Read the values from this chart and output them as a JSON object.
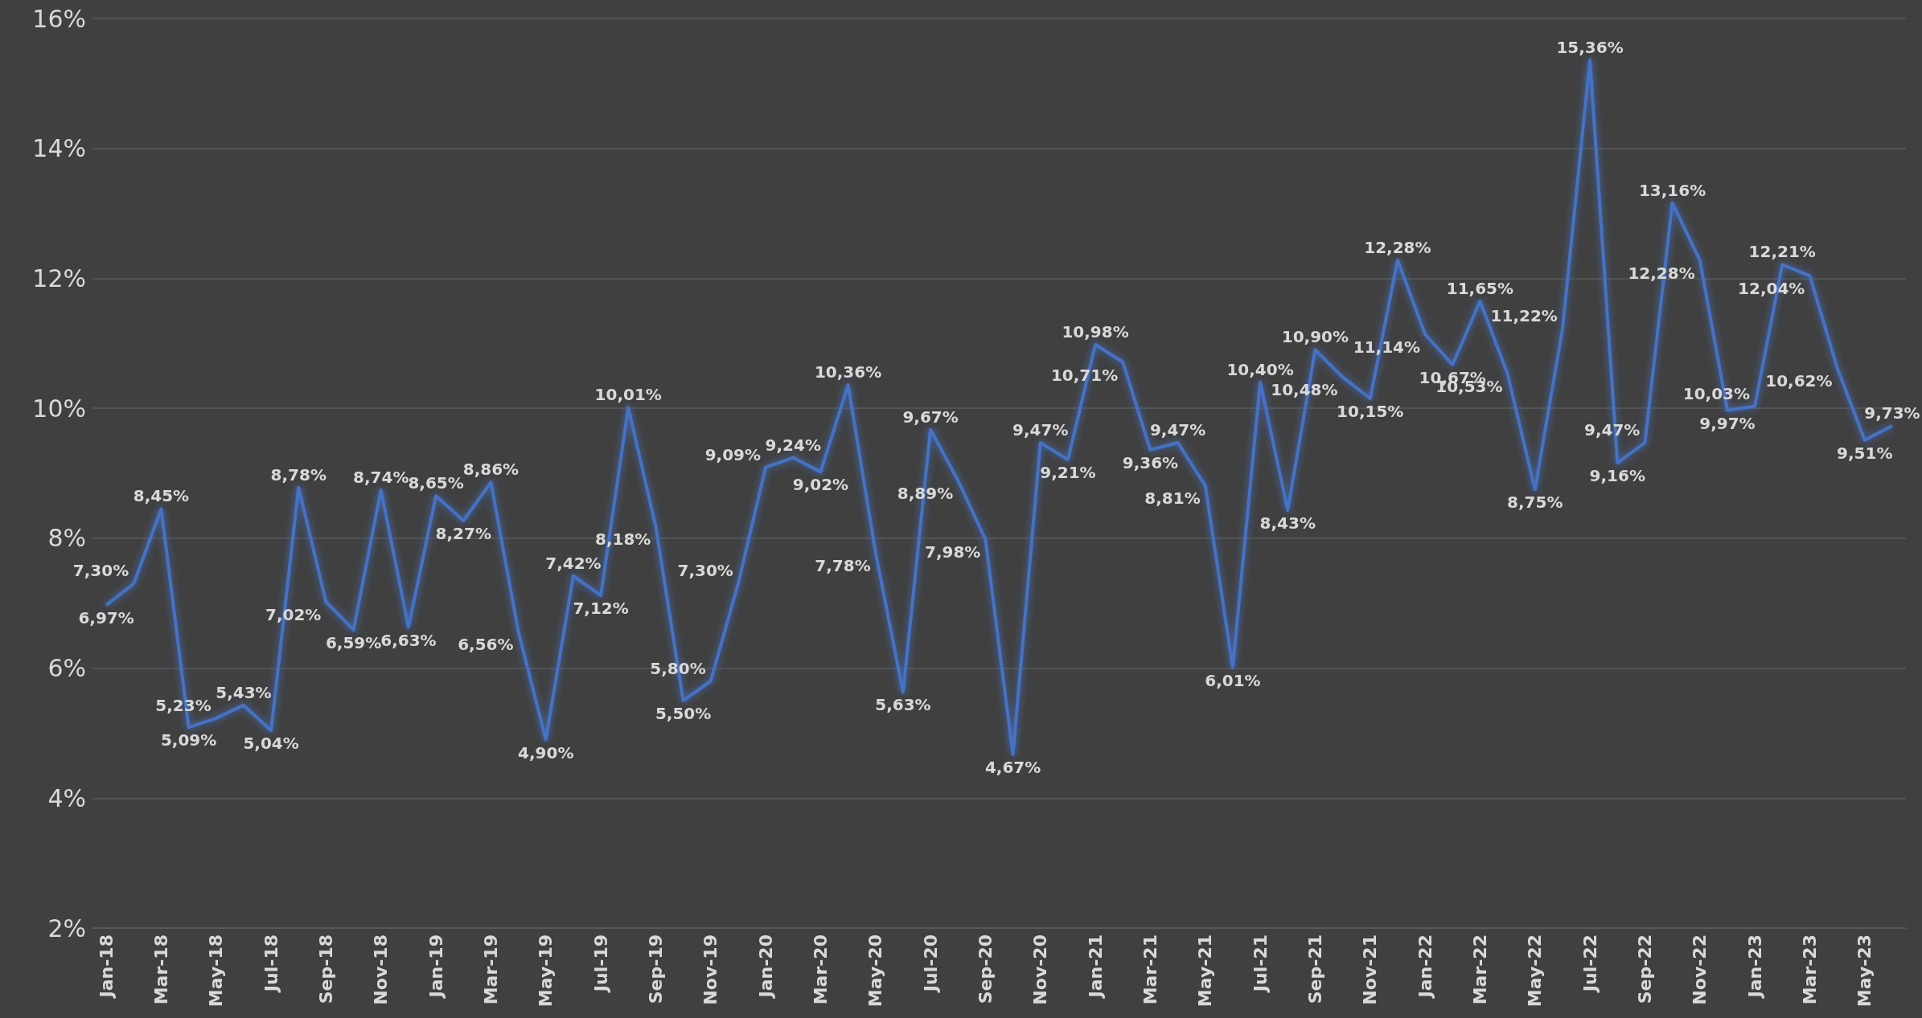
{
  "chart_data": {
    "type": "line",
    "categories": [
      "Jan-18",
      null,
      "Mar-18",
      null,
      "May-18",
      null,
      "Jul-18",
      null,
      "Sep-18",
      null,
      "Nov-18",
      null,
      "Jan-19",
      null,
      "Mar-19",
      null,
      "May-19",
      null,
      "Jul-19",
      null,
      "Sep-19",
      null,
      "Nov-19",
      null,
      "Jan-20",
      null,
      "Mar-20",
      null,
      "May-20",
      null,
      "Jul-20",
      null,
      "Sep-20",
      null,
      "Nov-20",
      null,
      "Jan-21",
      null,
      "Mar-21",
      null,
      "May-21",
      null,
      "Jul-21",
      null,
      "Sep-21",
      null,
      "Nov-21",
      null,
      "Jan-22",
      null,
      "Mar-22",
      null,
      "May-22",
      null,
      "Jul-22",
      null,
      "Sep-22",
      null,
      "Nov-22",
      null,
      "Jan-23",
      null,
      "Mar-23",
      null,
      "May-23",
      null
    ],
    "series": [
      {
        "color": "#4472c4",
        "values": [
          6.97,
          7.3,
          8.45,
          5.09,
          5.23,
          5.43,
          5.04,
          8.78,
          7.02,
          6.59,
          8.74,
          6.63,
          8.65,
          8.27,
          8.86,
          6.56,
          4.9,
          7.42,
          7.12,
          10.01,
          8.18,
          5.5,
          5.8,
          7.3,
          9.09,
          9.24,
          9.02,
          10.36,
          7.78,
          5.63,
          9.67,
          8.89,
          7.98,
          4.67,
          9.47,
          9.21,
          10.98,
          10.71,
          9.36,
          9.47,
          8.81,
          6.01,
          10.4,
          8.43,
          10.9,
          10.48,
          10.15,
          12.28,
          11.14,
          10.67,
          11.65,
          10.53,
          8.75,
          11.22,
          15.36,
          9.16,
          9.47,
          13.16,
          12.28,
          9.97,
          10.03,
          12.21,
          12.04,
          10.62,
          9.51,
          9.73
        ],
        "value_labels": [
          "6,97%",
          "7,30%",
          "8,45%",
          "5,09%",
          "5,23%",
          "5,43%",
          "5,04%",
          "8,78%",
          "7,02%",
          "6,59%",
          "8,74%",
          "6,63%",
          "8,65%",
          "8,27%",
          "8,86%",
          "6,56%",
          "4,90%",
          "7,42%",
          "7,12%",
          "10,01%",
          "8,18%",
          "5,50%",
          "5,80%",
          "7,30%",
          "9,09%",
          "9,24%",
          "9,02%",
          "10,36%",
          "7,78%",
          "5,63%",
          "9,67%",
          "8,89%",
          "7,98%",
          "4,67%",
          "9,47%",
          "9,21%",
          "10,98%",
          "10,71%",
          "9,36%",
          "9,47%",
          "8,81%",
          "6,01%",
          "10,40%",
          "8,43%",
          "10,90%",
          "10,48%",
          "10,15%",
          "12,28%",
          "11,14%",
          "10,67%",
          "11,65%",
          "10,53%",
          "8,75%",
          "11,22%",
          "15,36%",
          "9,16%",
          "9,47%",
          "13,16%",
          "12,28%",
          "9,97%",
          "10,03%",
          "12,21%",
          "12,04%",
          "10,62%",
          "9,51%",
          "9,73%"
        ]
      }
    ],
    "ylim": [
      2,
      16
    ],
    "yticks": [
      {
        "value": 2,
        "label": "2%"
      },
      {
        "value": 4,
        "label": "4%"
      },
      {
        "value": 6,
        "label": "6%"
      },
      {
        "value": 8,
        "label": "8%"
      },
      {
        "value": 10,
        "label": "10%"
      },
      {
        "value": 12,
        "label": "12%"
      },
      {
        "value": 14,
        "label": "14%"
      },
      {
        "value": 16,
        "label": "16%"
      }
    ],
    "grid": "y",
    "marker": "none",
    "line_style": "solid"
  }
}
